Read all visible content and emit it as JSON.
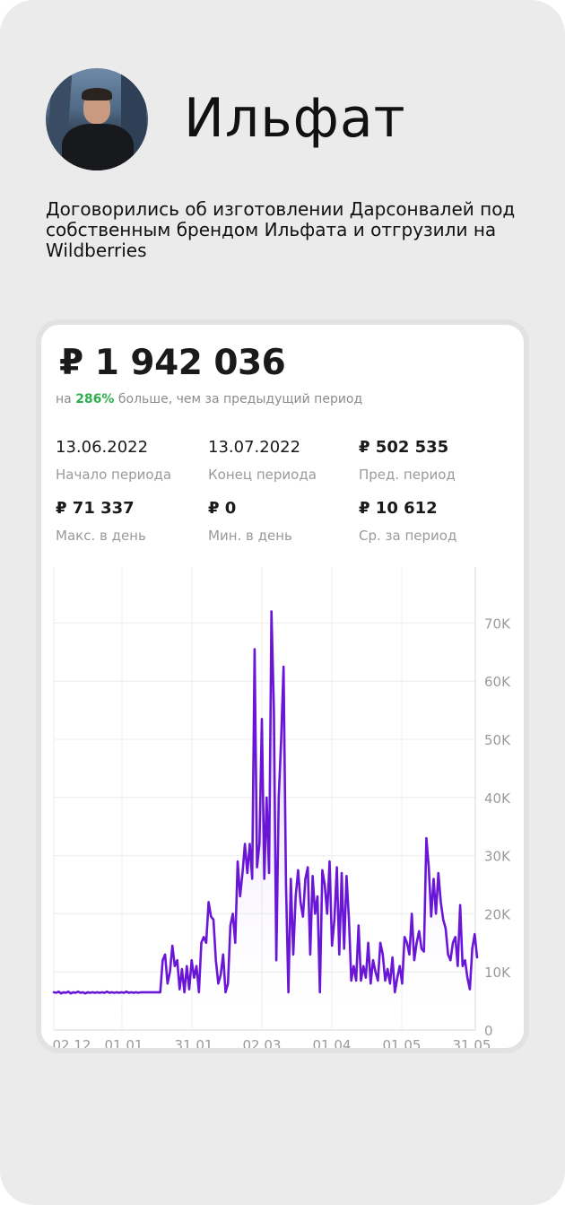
{
  "profile": {
    "name": "Ильфат",
    "description": "Договорились об изготовлении Дарсонвалей под собственным брендом Ильфата и отгрузили на Wildberries"
  },
  "stats": {
    "total": "₽ 1 942 036",
    "compare_prefix": "на ",
    "compare_pct": "286%",
    "compare_suffix": " больше, чем за предыдущий период",
    "metrics": [
      {
        "value": "13.06.2022",
        "label": "Начало периода",
        "bold": false
      },
      {
        "value": "13.07.2022",
        "label": "Конец периода",
        "bold": false
      },
      {
        "value": "₽  502 535",
        "label": "Пред. период",
        "bold": true
      },
      {
        "value": "₽ 71 337",
        "label": "Макс. в день",
        "bold": true
      },
      {
        "value": "₽ 0",
        "label": "Мин. в день",
        "bold": true
      },
      {
        "value": "₽ 10 612",
        "label": "Ср. за период",
        "bold": true
      }
    ]
  },
  "colors": {
    "line": "#6a16d6",
    "positive": "#2fae4e"
  },
  "chart_data": {
    "type": "line",
    "x_ticks": [
      "02.12",
      "01.01",
      "31.01",
      "02.03",
      "01.04",
      "01.05",
      "31.05"
    ],
    "y_ticks": [
      "0",
      "10K",
      "20K",
      "30K",
      "40K",
      "50K",
      "60K",
      "70K"
    ],
    "ylim": [
      0,
      78000
    ],
    "grid": true,
    "y_axis_position": "right",
    "series": [
      {
        "values": [
          6500,
          6400,
          6600,
          6300,
          6500,
          6400,
          6600,
          6300,
          6500,
          6400,
          6600,
          6400,
          6500,
          6300,
          6500,
          6400,
          6500,
          6400,
          6500,
          6400,
          6500,
          6400,
          6600,
          6400,
          6500,
          6400,
          6500,
          6400,
          6500,
          6400,
          6600,
          6400,
          6500,
          6400,
          6500,
          6400,
          6500,
          6500,
          6500,
          6500,
          6500,
          6500,
          6500,
          6500,
          6500,
          12000,
          13000,
          8000,
          10000,
          14500,
          11000,
          12000,
          7000,
          10500,
          6500,
          11000,
          7000,
          12000,
          9000,
          11000,
          6500,
          15000,
          16000,
          15000,
          22000,
          19500,
          19000,
          12000,
          8000,
          9500,
          13000,
          6500,
          8000,
          18000,
          20000,
          15000,
          29000,
          23000,
          27000,
          32000,
          27000,
          32000,
          26000,
          65500,
          28000,
          32000,
          53500,
          26000,
          40000,
          27000,
          72000,
          55000,
          12000,
          40000,
          50000,
          62500,
          25000,
          6500,
          26000,
          13000,
          23000,
          27500,
          22000,
          19500,
          26000,
          28000,
          13000,
          26500,
          20000,
          23000,
          6500,
          27500,
          25000,
          20000,
          29000,
          14500,
          19000,
          28000,
          13000,
          27000,
          14000,
          26500,
          19000,
          8500,
          11000,
          8500,
          18000,
          8500,
          11000,
          9000,
          15000,
          8000,
          12000,
          10000,
          8500,
          15000,
          13000,
          8500,
          10500,
          8000,
          12500,
          6500,
          9000,
          11000,
          8000,
          16000,
          15000,
          13000,
          20000,
          12000,
          15000,
          17000,
          14000,
          13500,
          33000,
          28000,
          19500,
          26000,
          20000,
          27000,
          22000,
          19000,
          17500,
          13000,
          12000,
          15000,
          16000,
          11000,
          21500,
          11000,
          12000,
          9000,
          7000,
          14000,
          16500,
          12500
        ]
      }
    ]
  }
}
